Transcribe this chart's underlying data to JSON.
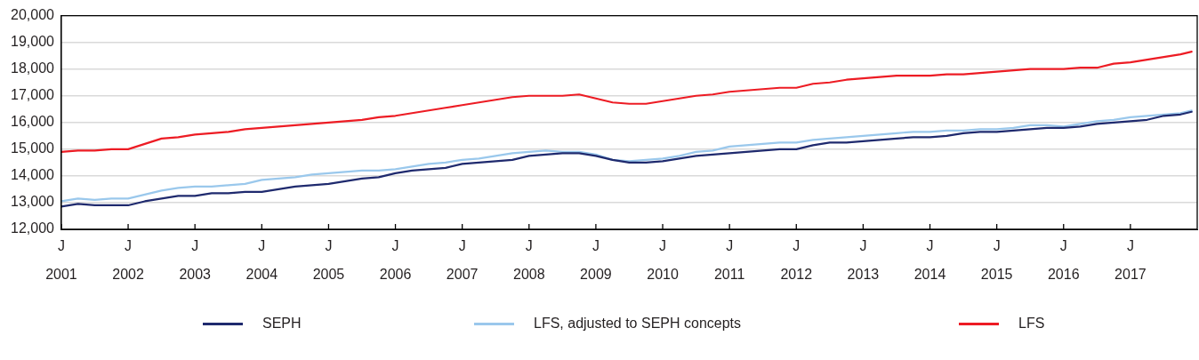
{
  "chart_data": {
    "type": "line",
    "x": [
      "2001-01",
      "2001-04",
      "2001-07",
      "2001-10",
      "2002-01",
      "2002-04",
      "2002-07",
      "2002-10",
      "2003-01",
      "2003-04",
      "2003-07",
      "2003-10",
      "2004-01",
      "2004-04",
      "2004-07",
      "2004-10",
      "2005-01",
      "2005-04",
      "2005-07",
      "2005-10",
      "2006-01",
      "2006-04",
      "2006-07",
      "2006-10",
      "2007-01",
      "2007-04",
      "2007-07",
      "2007-10",
      "2008-01",
      "2008-04",
      "2008-07",
      "2008-10",
      "2009-01",
      "2009-04",
      "2009-07",
      "2009-10",
      "2010-01",
      "2010-04",
      "2010-07",
      "2010-10",
      "2011-01",
      "2011-04",
      "2011-07",
      "2011-10",
      "2012-01",
      "2012-04",
      "2012-07",
      "2012-10",
      "2013-01",
      "2013-04",
      "2013-07",
      "2013-10",
      "2014-01",
      "2014-04",
      "2014-07",
      "2014-10",
      "2015-01",
      "2015-04",
      "2015-07",
      "2015-10",
      "2016-01",
      "2016-04",
      "2016-07",
      "2016-10",
      "2017-01",
      "2017-04",
      "2017-07",
      "2017-10",
      "2017-12"
    ],
    "series": [
      {
        "name": "SEPH",
        "color": "#1f2a6e",
        "values": [
          12850,
          12950,
          12900,
          12900,
          12900,
          13050,
          13150,
          13250,
          13250,
          13350,
          13350,
          13400,
          13400,
          13500,
          13600,
          13650,
          13700,
          13800,
          13900,
          13950,
          14100,
          14200,
          14250,
          14300,
          14450,
          14500,
          14550,
          14600,
          14750,
          14800,
          14850,
          14850,
          14750,
          14600,
          14500,
          14500,
          14550,
          14650,
          14750,
          14800,
          14850,
          14900,
          14950,
          15000,
          15000,
          15150,
          15250,
          15250,
          15300,
          15350,
          15400,
          15450,
          15450,
          15500,
          15600,
          15650,
          15650,
          15700,
          15750,
          15800,
          15800,
          15850,
          15950,
          16000,
          16050,
          16100,
          16250,
          16300,
          16400
        ]
      },
      {
        "name": "LFS, adjusted to SEPH concepts",
        "color": "#9ac8ec",
        "values": [
          13050,
          13150,
          13100,
          13150,
          13150,
          13300,
          13450,
          13550,
          13600,
          13600,
          13650,
          13700,
          13850,
          13900,
          13950,
          14050,
          14100,
          14150,
          14200,
          14200,
          14250,
          14350,
          14450,
          14500,
          14600,
          14650,
          14750,
          14850,
          14900,
          14950,
          14900,
          14900,
          14800,
          14600,
          14550,
          14600,
          14650,
          14750,
          14900,
          14950,
          15100,
          15150,
          15200,
          15250,
          15250,
          15350,
          15400,
          15450,
          15500,
          15550,
          15600,
          15650,
          15650,
          15700,
          15700,
          15750,
          15750,
          15800,
          15900,
          15900,
          15850,
          15950,
          16050,
          16100,
          16200,
          16250,
          16300,
          16350,
          16450
        ]
      },
      {
        "name": "LFS",
        "color": "#ed1c24",
        "values": [
          14900,
          14950,
          14950,
          15000,
          15000,
          15200,
          15400,
          15450,
          15550,
          15600,
          15650,
          15750,
          15800,
          15850,
          15900,
          15950,
          16000,
          16050,
          16100,
          16200,
          16250,
          16350,
          16450,
          16550,
          16650,
          16750,
          16850,
          16950,
          17000,
          17000,
          17000,
          17050,
          16900,
          16750,
          16700,
          16700,
          16800,
          16900,
          17000,
          17050,
          17150,
          17200,
          17250,
          17300,
          17300,
          17450,
          17500,
          17600,
          17650,
          17700,
          17750,
          17750,
          17750,
          17800,
          17800,
          17850,
          17900,
          17950,
          18000,
          18000,
          18000,
          18050,
          18050,
          18200,
          18250,
          18350,
          18450,
          18550,
          18650
        ]
      }
    ],
    "xlim": [
      "2001-01",
      "2018-01"
    ],
    "xticks": [
      {
        "value": "2001-01",
        "label": "J\n2001"
      },
      {
        "value": "2002-01",
        "label": "J\n2002"
      },
      {
        "value": "2003-01",
        "label": "J\n2003"
      },
      {
        "value": "2004-01",
        "label": "J\n2004"
      },
      {
        "value": "2005-01",
        "label": "J\n2005"
      },
      {
        "value": "2006-01",
        "label": "J\n2006"
      },
      {
        "value": "2007-01",
        "label": "J\n2007"
      },
      {
        "value": "2008-01",
        "label": "J\n2008"
      },
      {
        "value": "2009-01",
        "label": "J\n2009"
      },
      {
        "value": "2010-01",
        "label": "J\n2010"
      },
      {
        "value": "2011-01",
        "label": "J\n2011"
      },
      {
        "value": "2012-01",
        "label": "J\n2012"
      },
      {
        "value": "2013-01",
        "label": "J\n2013"
      },
      {
        "value": "2014-01",
        "label": "J\n2014"
      },
      {
        "value": "2015-01",
        "label": "J\n2015"
      },
      {
        "value": "2016-01",
        "label": "J\n2016"
      },
      {
        "value": "2017-01",
        "label": "J\n2017"
      }
    ],
    "ylim": [
      12000,
      20000
    ],
    "yticks": [
      {
        "value": 12000,
        "label": "12,000"
      },
      {
        "value": 13000,
        "label": "13,000"
      },
      {
        "value": 14000,
        "label": "14,000"
      },
      {
        "value": 15000,
        "label": "15,000"
      },
      {
        "value": 16000,
        "label": "16,000"
      },
      {
        "value": 17000,
        "label": "17,000"
      },
      {
        "value": 18000,
        "label": "18,000"
      },
      {
        "value": 19000,
        "label": "19,000"
      },
      {
        "value": 20000,
        "label": "20,000"
      }
    ],
    "grid": "y",
    "legend": "bottom",
    "marker": "none",
    "line_style": "solid"
  }
}
